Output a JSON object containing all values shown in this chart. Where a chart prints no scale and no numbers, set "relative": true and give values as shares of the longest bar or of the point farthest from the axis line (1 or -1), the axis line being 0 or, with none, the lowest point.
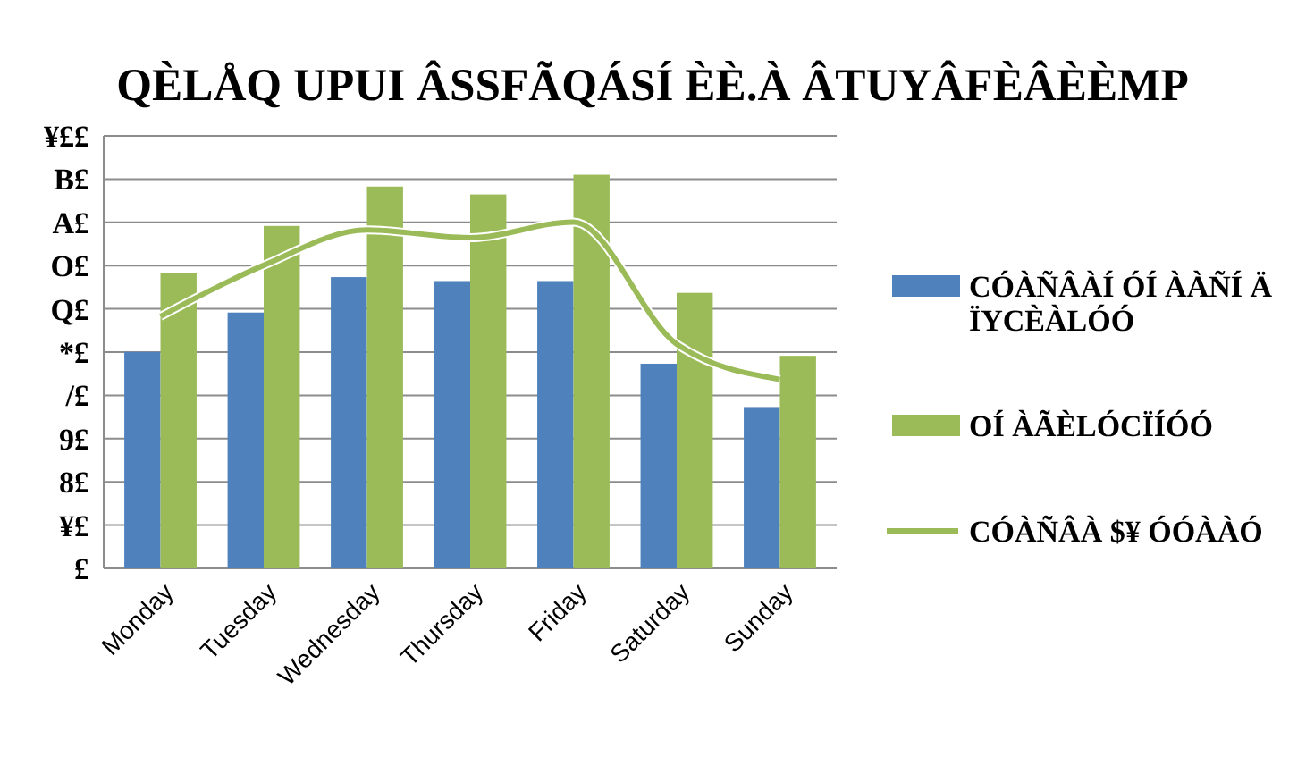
{
  "chart_data": {
    "type": "bar",
    "title": "QÈLÅQ UPUI ÂSSFÃQÁSÍ ÈÈ.À ÂTUYÂFÈÂÈÈMP",
    "categories": [
      "Monday",
      "Tuesday",
      "Wednesday",
      "Thursday",
      "Friday",
      "Saturday",
      "Sunday"
    ],
    "relative": true,
    "series": [
      {
        "name": "CÓÀÑÂÀÍ ÓÍ ÀÀÑÍ Ä ÏYCÈÀLÓÓ",
        "color": "#4f81bd",
        "values": [
          0.55,
          0.65,
          0.74,
          0.73,
          0.73,
          0.52,
          0.41
        ]
      },
      {
        "name": "OÍ ÀÃÈLÓCÏÍÓÓ",
        "color": "#9bbb59",
        "values": [
          0.75,
          0.87,
          0.97,
          0.95,
          1,
          0.7,
          0.54
        ]
      },
      {
        "name": "CÓÀÑÂÀ $¥ ÓÓÀÀÓ",
        "type": "line",
        "color": "#9bbb59",
        "values": [
          0.64,
          0.77,
          0.86,
          0.84,
          0.88,
          0.57,
          0.48
        ]
      }
    ],
    "annotations": [
      "¥££",
      "B£",
      "A£",
      "O£",
      "Q£",
      "*£",
      "/£",
      "9£",
      "8£",
      "¥£",
      "£"
    ],
    "grid": true,
    "legend": "right",
    "line_style": "solid"
  }
}
